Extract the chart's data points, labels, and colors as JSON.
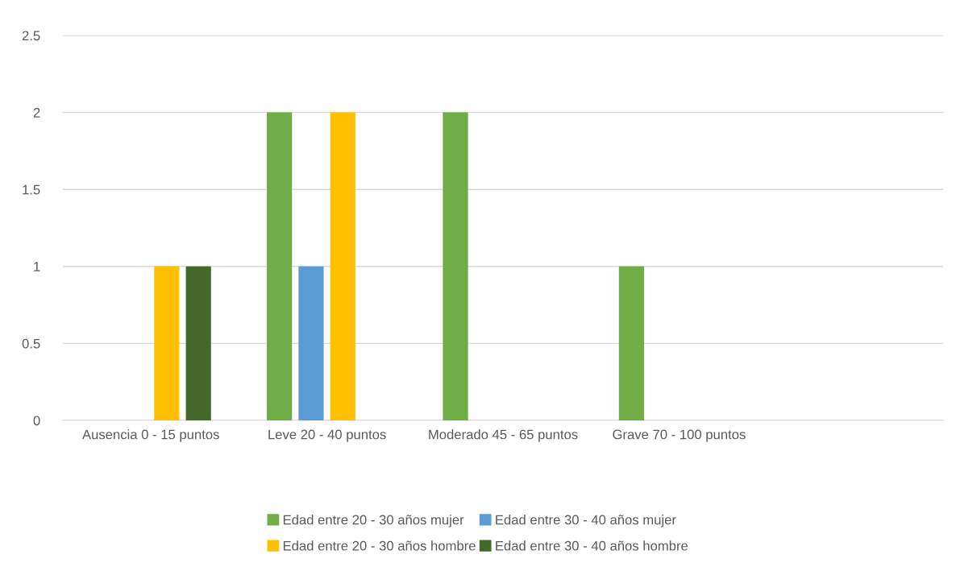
{
  "chart_data": {
    "type": "bar",
    "categories": [
      "Ausencia 0 - 15 puntos",
      "Leve 20 - 40 puntos",
      "Moderado 45 - 65 puntos",
      "Grave 70 - 100 puntos",
      null
    ],
    "series": [
      {
        "name": "Edad entre 20 - 30 años mujer",
        "color": "#70ad47",
        "values": [
          null,
          2,
          2,
          1,
          null
        ]
      },
      {
        "name": "Edad entre 30 - 40 años mujer",
        "color": "#5b9bd5",
        "values": [
          null,
          1,
          null,
          null,
          null
        ]
      },
      {
        "name": "Edad entre 20 - 30 años hombre",
        "color": "#ffc000",
        "values": [
          1,
          2,
          null,
          null,
          null
        ]
      },
      {
        "name": "Edad entre 30 - 40 años hombre",
        "color": "#43682b",
        "values": [
          1,
          null,
          null,
          null,
          null
        ]
      }
    ],
    "ylim": [
      0,
      2.5
    ],
    "yticks": [
      0,
      0.5,
      1,
      1.5,
      2,
      2.5
    ],
    "grid": "y",
    "legend": "bottom"
  }
}
